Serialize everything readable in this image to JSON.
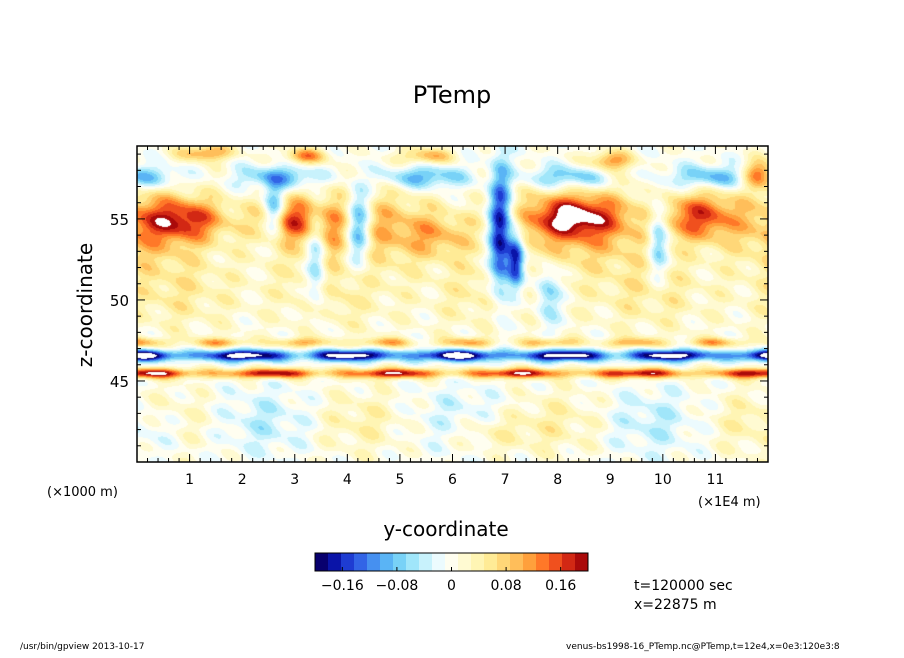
{
  "chart_data": {
    "type": "heatmap",
    "title": "PTemp",
    "xlabel": "y-coordinate",
    "ylabel": "z-coordinate",
    "x_unit_left": "(×1000 m)",
    "x_unit_right": "(×1E4 m)",
    "xlim": [
      0,
      12
    ],
    "ylim": [
      40,
      59.5
    ],
    "x_ticks": [
      "1",
      "2",
      "3",
      "4",
      "5",
      "6",
      "7",
      "8",
      "9",
      "10",
      "11"
    ],
    "y_ticks": [
      "45",
      "50",
      "55"
    ],
    "colorbar": {
      "min": -0.2,
      "max": 0.2,
      "labels": [
        "−0.16",
        "−0.08",
        "0",
        "0.08",
        "0.16"
      ],
      "label_values": [
        -0.16,
        -0.08,
        0,
        0.08,
        0.16
      ],
      "colors": [
        "#08006e",
        "#0a14a8",
        "#1e3cd2",
        "#3264e6",
        "#4690f0",
        "#5ab4f5",
        "#78d2f7",
        "#a0e6fa",
        "#c8f2fc",
        "#ecfbfe",
        "#fffef0",
        "#fffad2",
        "#fff5b4",
        "#ffeb96",
        "#ffd778",
        "#ffbe5a",
        "#ffa03c",
        "#ff7828",
        "#f0501e",
        "#d22814",
        "#aa0a0a"
      ]
    },
    "annotations": {
      "time": "t=120000 sec",
      "position": "x=22875 m"
    },
    "field_description": "Potential temperature perturbation in the y–z plane: strong paired negative/positive bands near z≈46–47, large positive (warm) regions near z≈54–56, deep negative plume near y≈7 extending from z≈48 to 58, mixed small-scale features near the top (z≈57–59)."
  },
  "footer": {
    "left": "/usr/bin/gpview   2013-10-17",
    "right": "venus-bs1998-16_PTemp.nc@PTemp,t=12e4,x=0e3:120e3:8"
  }
}
